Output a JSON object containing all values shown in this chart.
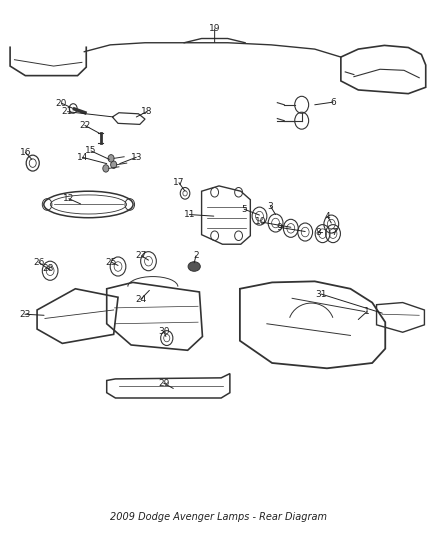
{
  "title": "2009 Dodge Avenger Lamps - Rear Diagram",
  "bg_color": "#ffffff",
  "line_color": "#333333",
  "text_color": "#222222",
  "callout_color": "#222222",
  "figsize": [
    4.38,
    5.33
  ],
  "dpi": 100
}
